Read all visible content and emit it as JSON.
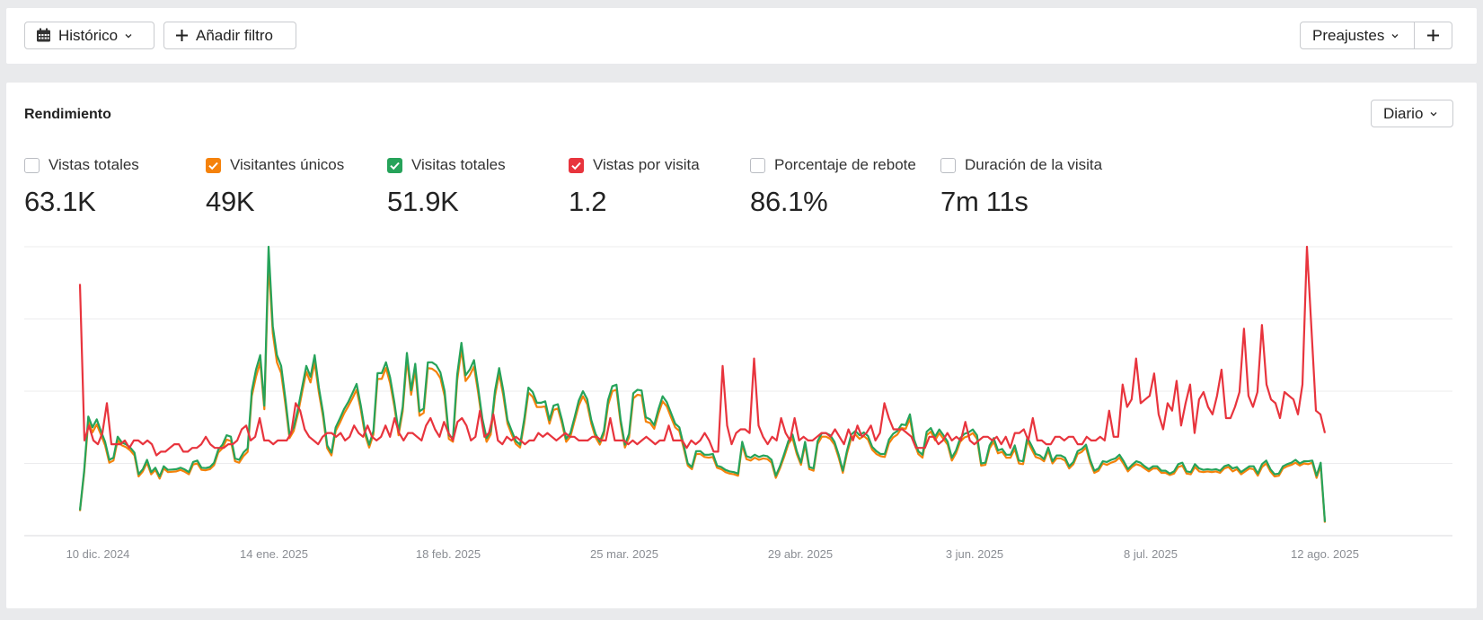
{
  "toolbar": {
    "history_label": "Histórico",
    "filter_label": "Añadir filtro",
    "presets_label": "Preajustes"
  },
  "panel": {
    "title": "Rendimiento",
    "granularity": "Diario"
  },
  "metrics": [
    {
      "label": "Vistas totales",
      "value": "63.1K",
      "checked": false,
      "color": ""
    },
    {
      "label": "Visitantes únicos",
      "value": "49K",
      "checked": true,
      "color": "#f5820b"
    },
    {
      "label": "Visitas totales",
      "value": "51.9K",
      "checked": true,
      "color": "#26a35a"
    },
    {
      "label": "Vistas por visita",
      "value": "1.2",
      "checked": true,
      "color": "#e8343d"
    },
    {
      "label": "Porcentaje de rebote",
      "value": "86.1%",
      "checked": false,
      "color": ""
    },
    {
      "label": "Duración de la visita",
      "value": "7m 11s",
      "checked": false,
      "color": ""
    }
  ],
  "chart_data": {
    "type": "line",
    "x_tick_labels": [
      "10 dic. 2024",
      "14 ene. 2025",
      "18 feb. 2025",
      "25 mar. 2025",
      "29 abr. 2025",
      "3 jun. 2025",
      "8 jul. 2025",
      "12 ago. 2025"
    ],
    "x_range": [
      "2024-12-01",
      "2025-08-12"
    ],
    "grid": true,
    "y_tick_labels_visible": false,
    "series": [
      {
        "name": "Vistas por visita",
        "color": "#e8343d",
        "values": [
          4.1,
          2,
          2.2,
          2,
          1.95,
          2.1,
          2.5,
          1.95,
          1.95,
          1.95,
          2,
          1.9,
          2,
          2,
          1.95,
          2,
          1.95,
          1.8,
          1.85,
          1.85,
          1.9,
          1.95,
          1.95,
          1.85,
          1.85,
          1.9,
          1.9,
          1.95,
          2.05,
          1.95,
          1.9,
          1.9,
          1.9,
          1.95,
          1.95,
          2,
          2.15,
          2.2,
          2,
          2.05,
          2.3,
          2,
          2,
          1.95,
          2,
          2,
          2,
          2.1,
          2.5,
          2.4,
          2.15,
          2.05,
          2,
          1.95,
          2.05,
          2.1,
          2.1,
          2.05,
          2.1,
          2,
          2.05,
          2.2,
          2.1,
          2.05,
          2.2,
          2.05,
          2,
          2.05,
          2.2,
          2.05,
          2.3,
          2.1,
          2,
          2.1,
          2.1,
          2.05,
          2,
          2.2,
          2.3,
          2.15,
          2.05,
          2.25,
          2.1,
          2,
          2.25,
          2.3,
          2.2,
          2,
          2.05,
          2.4,
          2.05,
          2.1,
          2.35,
          2,
          1.95,
          2.05,
          2,
          2.05,
          2,
          1.95,
          2,
          2,
          2.1,
          2.05,
          2.1,
          2.05,
          2,
          2.05,
          2.1,
          2.05,
          2.05,
          2,
          2,
          2,
          2.05,
          2.05,
          2,
          2,
          2.3,
          2,
          2,
          2,
          1.95,
          2,
          1.95,
          2,
          2.05,
          2,
          1.95,
          2,
          2,
          2.2,
          2,
          2,
          2,
          1.9,
          2,
          1.95,
          2,
          2.1,
          2,
          1.85,
          1.85,
          3,
          2.2,
          1.95,
          2.1,
          2.15,
          2.15,
          2.1,
          3.1,
          2.2,
          2.05,
          1.95,
          2.05,
          2,
          2.3,
          2.1,
          2,
          2.3,
          2,
          2.05,
          2,
          2,
          2.05,
          2.1,
          2.1,
          2.05,
          2.15,
          2.05,
          1.95,
          2.15,
          2,
          2.2,
          2.05,
          2.1,
          2.2,
          2,
          2.1,
          2.5,
          2.3,
          2.15,
          2.15,
          2.15,
          2.1,
          2.05,
          1.9,
          1.9,
          1.9,
          2.05,
          2.05,
          1.95,
          2,
          2.1,
          2,
          2.05,
          2,
          2.25,
          2,
          1.95,
          2,
          2.05,
          2.05,
          2,
          2.05,
          1.95,
          2.05,
          1.9,
          2.1,
          2.1,
          2.15,
          2,
          2.3,
          2,
          2,
          1.95,
          1.95,
          2.05,
          2.05,
          2,
          2.05,
          2.05,
          1.95,
          1.95,
          2.05,
          2,
          2,
          2.05,
          2,
          2.4,
          2.05,
          2.05,
          2.75,
          2.45,
          2.55,
          3.1,
          2.5,
          2.55,
          2.6,
          2.9,
          2.35,
          2.15,
          2.5,
          2.4,
          2.8,
          2.2,
          2.5,
          2.75,
          2.1,
          2.55,
          2.65,
          2.45,
          2.35,
          2.6,
          2.95,
          2.3,
          2.3,
          2.45,
          2.65,
          3.5,
          2.6,
          2.45,
          2.65,
          3.55,
          2.75,
          2.55,
          2.5,
          2.3,
          2.65,
          2.6,
          2.55,
          2.35,
          2.75,
          4.6,
          3.5,
          2.4,
          2.35,
          2.1
        ]
      },
      {
        "name": "Visitas totales",
        "color": "#26a35a",
        "values": [
          350,
          900,
          1650,
          1500,
          1610,
          1450,
          1300,
          1050,
          1080,
          1370,
          1290,
          1265,
          1220,
          1150,
          850,
          920,
          1050,
          880,
          940,
          820,
          960,
          910,
          915,
          920,
          940,
          915,
          880,
          1020,
          1040,
          940,
          935,
          950,
          1010,
          1190,
          1260,
          1390,
          1370,
          1070,
          1050,
          1150,
          1210,
          2000,
          2300,
          2500,
          1800,
          4000,
          2900,
          2500,
          2350,
          1900,
          1400,
          1500,
          1750,
          2050,
          2350,
          2200,
          2500,
          2050,
          1700,
          1250,
          1150,
          1500,
          1620,
          1750,
          1850,
          1970,
          2100,
          1800,
          1450,
          1260,
          1450,
          2250,
          2250,
          2400,
          2190,
          1850,
          1440,
          1780,
          2530,
          2010,
          2380,
          1720,
          1760,
          2400,
          2400,
          2360,
          2260,
          2000,
          1390,
          1350,
          2230,
          2670,
          2220,
          2300,
          2430,
          2050,
          1620,
          1350,
          1450,
          2000,
          2320,
          2010,
          1600,
          1450,
          1310,
          1260,
          1620,
          2050,
          1990,
          1840,
          1840,
          1860,
          1600,
          1800,
          1820,
          1600,
          1340,
          1420,
          1640,
          1870,
          2000,
          1890,
          1600,
          1410,
          1300,
          1450,
          1880,
          2070,
          2090,
          1600,
          1260,
          1410,
          1970,
          2020,
          2010,
          1640,
          1610,
          1530,
          1750,
          1930,
          1850,
          1700,
          1550,
          1500,
          1260,
          1000,
          950,
          1170,
          1170,
          1120,
          1120,
          1130,
          970,
          950,
          910,
          890,
          880,
          860,
          1300,
          1100,
          1080,
          1120,
          1090,
          1110,
          1100,
          1050,
          830,
          960,
          1130,
          1310,
          1400,
          1170,
          1010,
          1300,
          950,
          930,
          1310,
          1420,
          1420,
          1390,
          1300,
          1120,
          900,
          1180,
          1400,
          1450,
          1390,
          1430,
          1380,
          1230,
          1170,
          1130,
          1130,
          1330,
          1410,
          1450,
          1540,
          1530,
          1680,
          1330,
          1170,
          1120,
          1440,
          1490,
          1370,
          1470,
          1390,
          1300,
          1080,
          1180,
          1350,
          1410,
          1430,
          1470,
          1390,
          1000,
          1010,
          1250,
          1350,
          1180,
          1200,
          1120,
          1120,
          1250,
          1040,
          1030,
          1360,
          1250,
          1130,
          1110,
          1060,
          1220,
          1030,
          1110,
          1110,
          1080,
          960,
          1020,
          1170,
          1200,
          1260,
          1050,
          900,
          930,
          1030,
          1020,
          1050,
          1070,
          1120,
          1030,
          920,
          980,
          1030,
          1010,
          960,
          920,
          960,
          960,
          900,
          900,
          860,
          890,
          990,
          1010,
          890,
          880,
          990,
          930,
          910,
          920,
          910,
          920,
          900,
          960,
          980,
          930,
          950,
          880,
          920,
          960,
          960,
          860,
          990,
          1040,
          920,
          850,
          860,
          960,
          990,
          1010,
          1050,
          1000,
          1030,
          1030,
          1040,
          830,
          1010,
          190
        ]
      },
      {
        "name": "Visitantes únicos",
        "color": "#f5820b",
        "values": [
          340,
          870,
          1580,
          1430,
          1540,
          1400,
          1250,
          1010,
          1040,
          1320,
          1250,
          1225,
          1180,
          1110,
          820,
          890,
          1010,
          850,
          910,
          790,
          930,
          880,
          885,
          890,
          910,
          885,
          850,
          985,
          1000,
          910,
          905,
          920,
          975,
          1150,
          1210,
          1330,
          1310,
          1030,
          1010,
          1100,
          1160,
          1930,
          2200,
          2400,
          1750,
          3800,
          2800,
          2400,
          2250,
          1820,
          1350,
          1450,
          1690,
          1980,
          2270,
          2120,
          2400,
          1980,
          1640,
          1210,
          1110,
          1450,
          1560,
          1690,
          1790,
          1900,
          2020,
          1740,
          1400,
          1220,
          1400,
          2170,
          2170,
          2320,
          2110,
          1790,
          1390,
          1720,
          2440,
          1950,
          2300,
          1660,
          1700,
          2320,
          2310,
          2270,
          2180,
          1930,
          1340,
          1300,
          2150,
          2580,
          2140,
          2220,
          2340,
          1980,
          1560,
          1300,
          1400,
          1930,
          2240,
          1940,
          1550,
          1400,
          1270,
          1220,
          1560,
          1980,
          1920,
          1780,
          1780,
          1790,
          1550,
          1740,
          1760,
          1550,
          1300,
          1370,
          1590,
          1800,
          1930,
          1820,
          1550,
          1360,
          1260,
          1400,
          1810,
          2000,
          2020,
          1550,
          1220,
          1360,
          1900,
          1950,
          1940,
          1580,
          1560,
          1480,
          1690,
          1860,
          1790,
          1640,
          1500,
          1450,
          1220,
          970,
          920,
          1130,
          1130,
          1090,
          1080,
          1090,
          940,
          920,
          880,
          860,
          850,
          830,
          1260,
          1060,
          1040,
          1080,
          1050,
          1070,
          1060,
          1010,
          800,
          930,
          1090,
          1270,
          1350,
          1130,
          980,
          1260,
          920,
          900,
          1270,
          1370,
          1370,
          1340,
          1260,
          1080,
          870,
          1140,
          1350,
          1400,
          1340,
          1380,
          1330,
          1190,
          1130,
          1100,
          1090,
          1280,
          1360,
          1400,
          1490,
          1480,
          1620,
          1290,
          1130,
          1080,
          1390,
          1440,
          1320,
          1420,
          1340,
          1260,
          1040,
          1140,
          1300,
          1360,
          1380,
          1420,
          1340,
          970,
          980,
          1210,
          1300,
          1140,
          1160,
          1080,
          1080,
          1200,
          1000,
          990,
          1310,
          1200,
          1090,
          1070,
          1030,
          1180,
          1000,
          1070,
          1070,
          1040,
          930,
          990,
          1130,
          1160,
          1220,
          1010,
          870,
          900,
          1000,
          980,
          1010,
          1030,
          1080,
          990,
          890,
          950,
          990,
          970,
          930,
          890,
          930,
          930,
          870,
          870,
          840,
          860,
          950,
          970,
          860,
          850,
          950,
          890,
          880,
          890,
          880,
          890,
          870,
          930,
          950,
          890,
          920,
          850,
          890,
          930,
          920,
          830,
          950,
          1000,
          890,
          820,
          830,
          930,
          960,
          980,
          1010,
          970,
          1000,
          990,
          1010,
          800,
          970,
          180
        ]
      }
    ]
  }
}
